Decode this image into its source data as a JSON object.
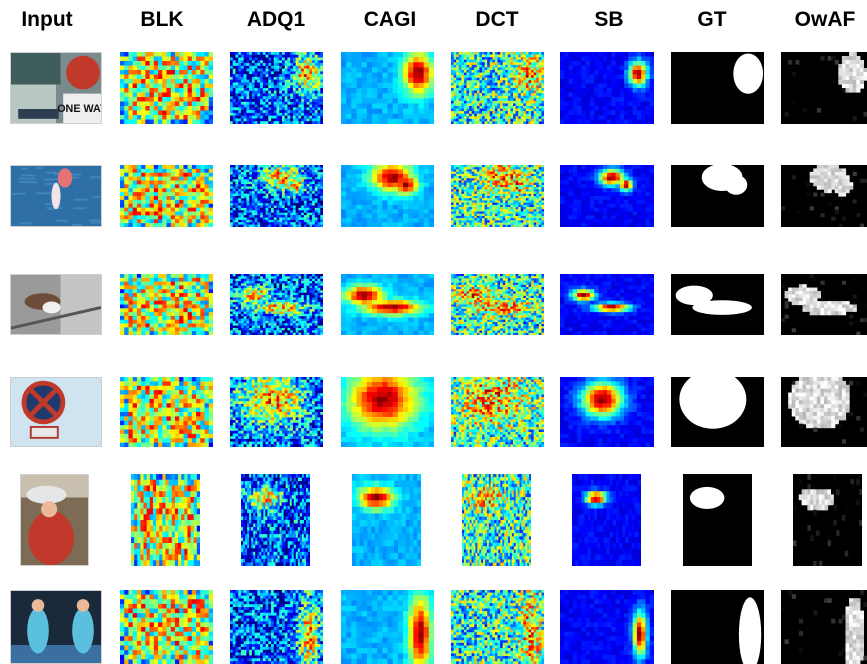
{
  "columns": [
    "Input",
    "BLK",
    "ADQ1",
    "CAGI",
    "DCT",
    "SB",
    "GT",
    "OwAF"
  ],
  "rows": [
    {
      "input": "stop-sign street scene with 'ONE WAY' sign",
      "sign_text": "ONE WAY"
    },
    {
      "input": "flamingo flying over blue water"
    },
    {
      "input": "small bird on a branch"
    },
    {
      "input": "red-crossed traffic sign against sky"
    },
    {
      "input": "woman with a hat, portrait crop"
    },
    {
      "input": "two tennis players in blue dresses"
    }
  ],
  "colors": {
    "jet_low": "#000080",
    "jet_high": "#800000",
    "mask_fg": "#ffffff",
    "mask_bg": "#000000"
  }
}
